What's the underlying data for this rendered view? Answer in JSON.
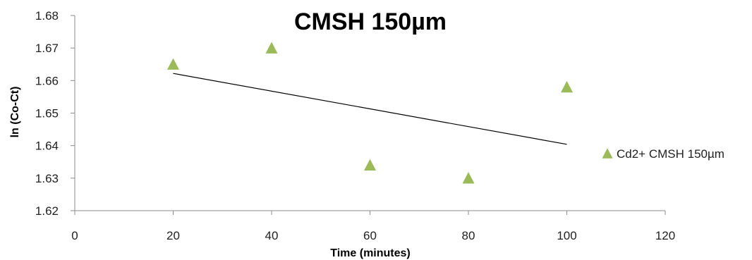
{
  "chart_data": {
    "type": "scatter",
    "title": "CMSH 150µm",
    "xlabel": "Time (minutes)",
    "ylabel": "ln (Co-Ct)",
    "xlim": [
      0,
      120
    ],
    "ylim": [
      1.62,
      1.68
    ],
    "x_ticks": [
      "0",
      "20",
      "40",
      "60",
      "80",
      "100",
      "120"
    ],
    "y_ticks": [
      "1.62",
      "1.63",
      "1.64",
      "1.65",
      "1.66",
      "1.67",
      "1.68"
    ],
    "grid": false,
    "legend_position": "right",
    "series": [
      {
        "name": "Cd2+ CMSH 150µm",
        "marker": "triangle",
        "color": "#9BBB59",
        "points": [
          {
            "x": 20,
            "y": 1.665
          },
          {
            "x": 40,
            "y": 1.67
          },
          {
            "x": 60,
            "y": 1.634
          },
          {
            "x": 80,
            "y": 1.63
          },
          {
            "x": 100,
            "y": 1.658
          }
        ]
      }
    ],
    "trendline": {
      "type": "linear",
      "color": "#000000",
      "x_range": [
        20,
        100
      ],
      "y_values": [
        1.6622,
        1.6404
      ]
    }
  }
}
